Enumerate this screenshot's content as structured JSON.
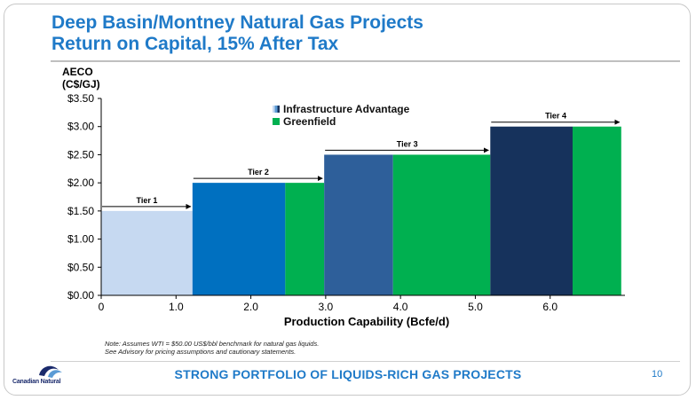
{
  "slide": {
    "title_line1": "Deep Basin/Montney Natural Gas Projects",
    "title_line2": "Return on Capital, 15% After Tax",
    "footer_title": "STRONG PORTFOLIO OF LIQUIDS-RICH GAS PROJECTS",
    "page_number": "10",
    "note_line1": "Note: Assumes WTI = $50.00 US$/bbl benchmark for natural gas liquids.",
    "note_line2": "See Advisory for pricing assumptions and cautionary statements.",
    "logo_text": "Canadian Natural",
    "colors": {
      "title": "#1f7ac8",
      "greenfield": "#00b050"
    }
  },
  "chart_data": {
    "type": "bar",
    "ylabel_line1": "AECO",
    "ylabel_line2": "(C$/GJ)",
    "xlabel": "Production Capability (Bcfe/d)",
    "ylim": [
      0,
      3.5
    ],
    "xlim": [
      0,
      7.0
    ],
    "y_ticks": [
      "$0.00",
      "$0.50",
      "$1.00",
      "$1.50",
      "$2.00",
      "$2.50",
      "$3.00",
      "$3.50"
    ],
    "x_ticks": [
      {
        "value": 0,
        "label": "0"
      },
      {
        "value": 1,
        "label": "1.0"
      },
      {
        "value": 2,
        "label": "2.0"
      },
      {
        "value": 3,
        "label": "3.0"
      },
      {
        "value": 4,
        "label": "4.0"
      },
      {
        "value": 5,
        "label": "5.0"
      },
      {
        "value": 6,
        "label": "6.0"
      }
    ],
    "legend": [
      {
        "name": "Infrastructure Advantage",
        "color": "#5b9bd5"
      },
      {
        "name": "Greenfield",
        "color": "#00b050"
      }
    ],
    "bars": [
      {
        "tier": "Tier 1",
        "type": "Infrastructure Advantage",
        "x0": 0.0,
        "x1": 1.22,
        "value": 1.5,
        "color": "#c6d9f1"
      },
      {
        "tier": "Tier 2",
        "type": "Infrastructure Advantage",
        "x0": 1.22,
        "x1": 2.46,
        "value": 2.0,
        "color": "#0070c0"
      },
      {
        "tier": "Tier 2",
        "type": "Greenfield",
        "x0": 2.46,
        "x1": 2.98,
        "value": 2.0,
        "color": "#00b050"
      },
      {
        "tier": "Tier 3",
        "type": "Infrastructure Advantage",
        "x0": 2.98,
        "x1": 3.9,
        "value": 2.5,
        "color": "#2e5f9a"
      },
      {
        "tier": "Tier 3",
        "type": "Greenfield",
        "x0": 3.9,
        "x1": 5.2,
        "value": 2.5,
        "color": "#00b050"
      },
      {
        "tier": "Tier 4",
        "type": "Infrastructure Advantage",
        "x0": 5.2,
        "x1": 6.3,
        "value": 3.0,
        "color": "#16325c"
      },
      {
        "tier": "Tier 4",
        "type": "Greenfield",
        "x0": 6.3,
        "x1": 6.95,
        "value": 3.0,
        "color": "#00b050"
      }
    ],
    "tiers": [
      {
        "label": "Tier 1",
        "x0": 0.0,
        "x1": 1.22,
        "value": 1.5
      },
      {
        "label": "Tier 2",
        "x0": 1.22,
        "x1": 2.98,
        "value": 2.0
      },
      {
        "label": "Tier 3",
        "x0": 2.98,
        "x1": 5.2,
        "value": 2.5
      },
      {
        "label": "Tier 4",
        "x0": 5.2,
        "x1": 6.95,
        "value": 3.0
      }
    ]
  }
}
